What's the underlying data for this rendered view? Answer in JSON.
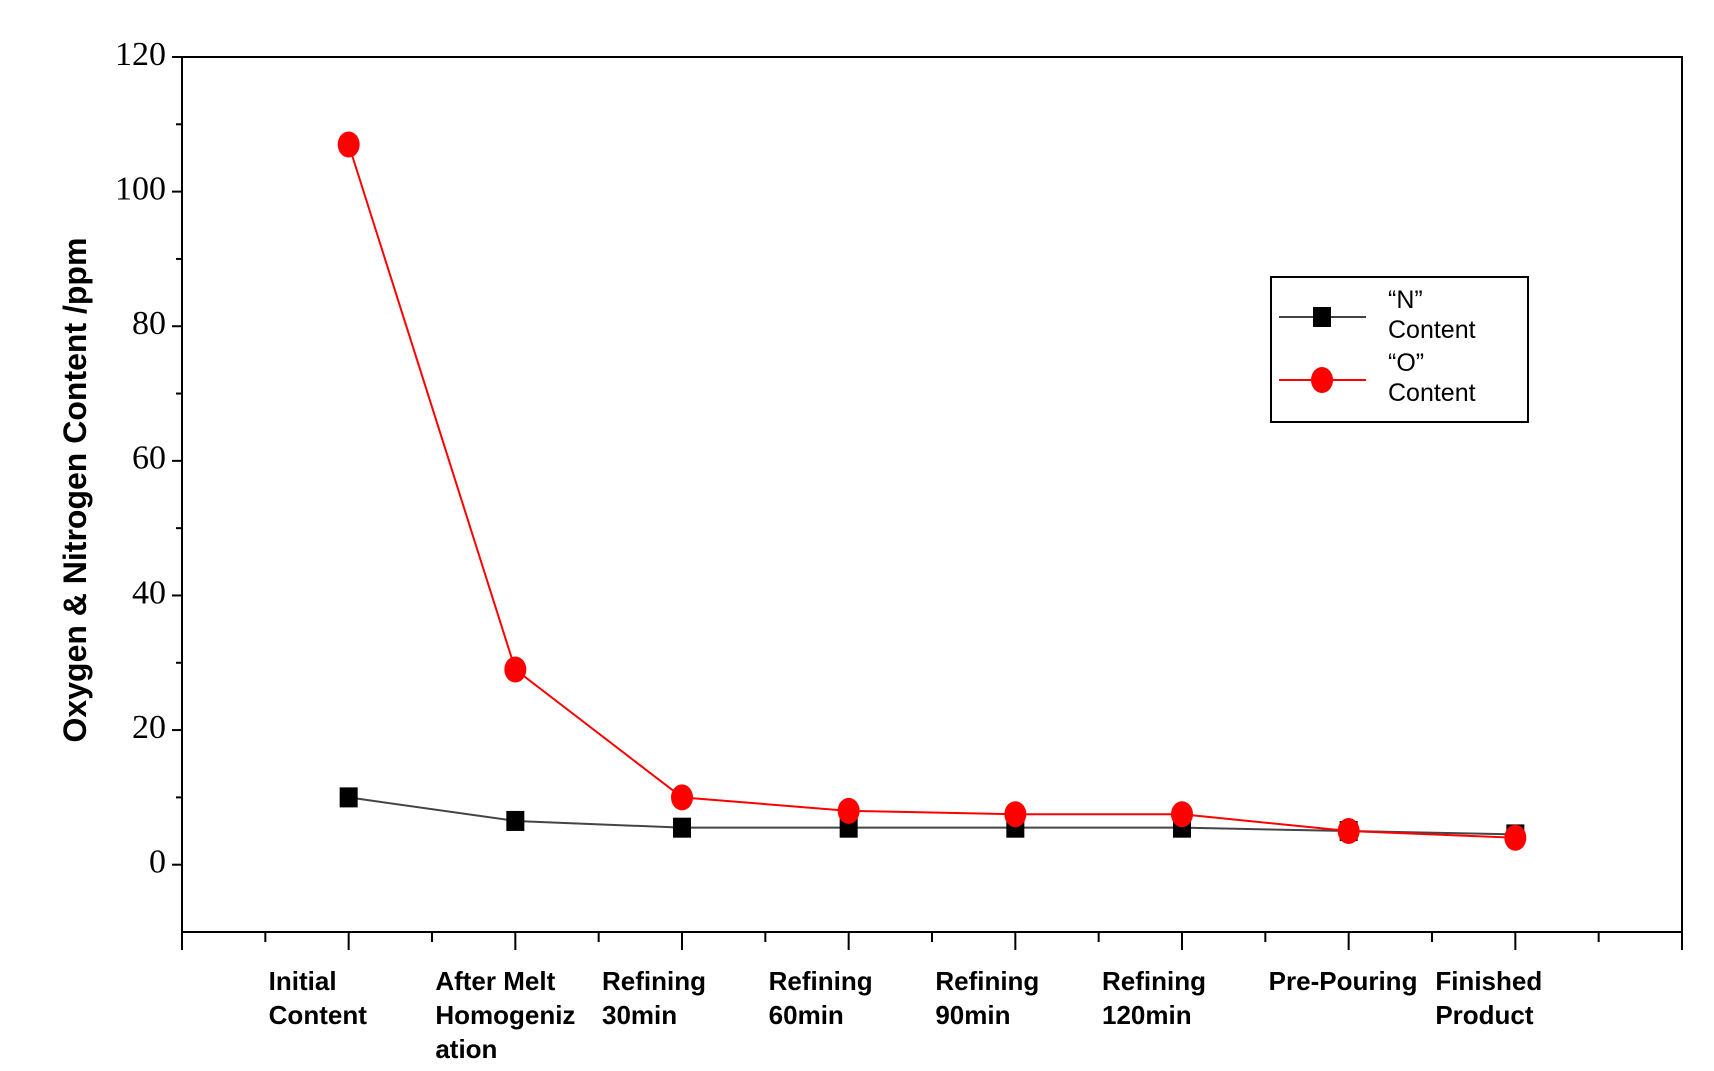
{
  "chart_data": {
    "type": "line",
    "y_label": "Oxygen & Nitrogen Content /ppm",
    "categories": [
      "Initial Content",
      "After Melt Homogenization",
      "Refining 30min",
      "Refining 60min",
      "Refining 90min",
      "Refining 120min",
      "Pre-Pouring",
      "Finished Product"
    ],
    "series": [
      {
        "name": "“N” Content",
        "color": "#000000",
        "line_color": "#444444",
        "marker": "square",
        "values": [
          10,
          6.5,
          5.5,
          5.5,
          5.5,
          5.5,
          5,
          4.5
        ]
      },
      {
        "name": "“O” Content",
        "color": "#ff0000",
        "line_color": "#ff0000",
        "marker": "circle",
        "values": [
          107,
          29,
          10,
          8,
          7.5,
          7.5,
          5,
          4
        ]
      }
    ],
    "ylim": [
      -10,
      120
    ],
    "yticks": [
      0,
      20,
      40,
      60,
      80,
      100,
      120
    ],
    "legend": "upper right"
  }
}
